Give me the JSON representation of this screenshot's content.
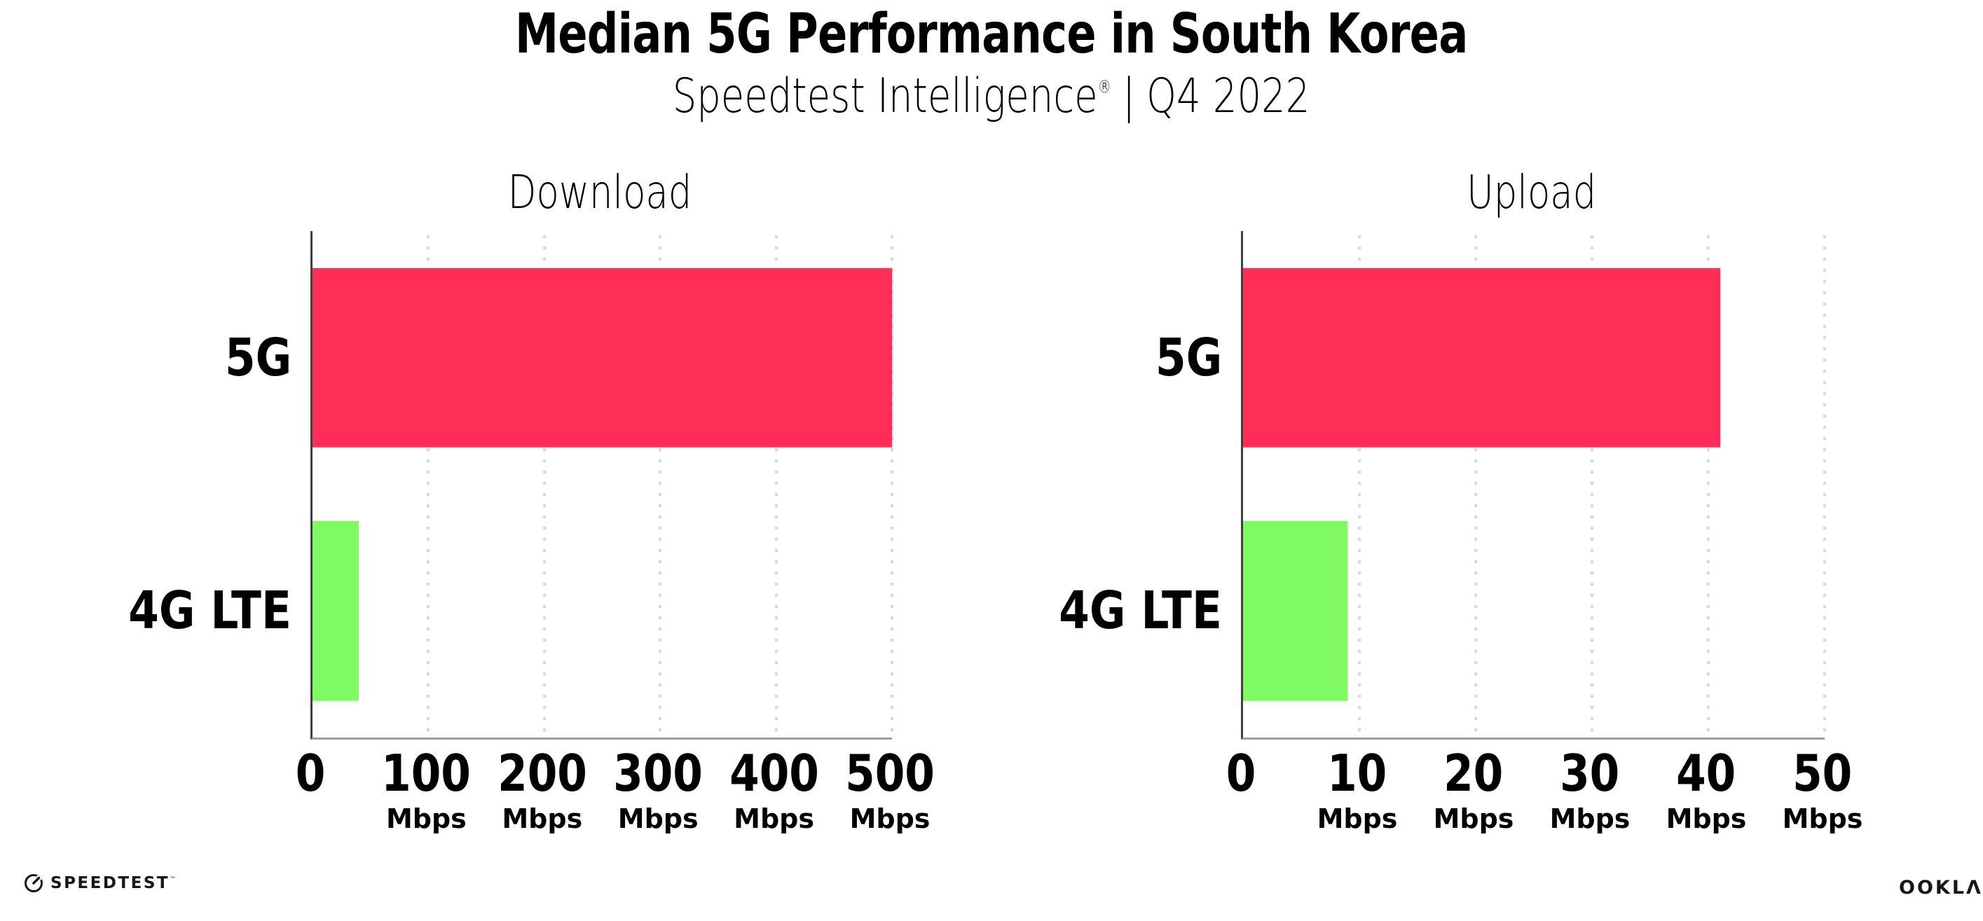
{
  "page": {
    "background": "#ffffff"
  },
  "header": {
    "title": "Median 5G Performance in South Korea",
    "subtitle_brand": "Speedtest Intelligence",
    "subtitle_registered": "®",
    "subtitle_separator": "|",
    "subtitle_period": "Q4 2022"
  },
  "chart_data": [
    {
      "type": "bar",
      "orientation": "horizontal",
      "title": "Download",
      "categories": [
        "5G",
        "4G LTE"
      ],
      "values": [
        500,
        40
      ],
      "unit": "Mbps",
      "xlim": [
        0,
        500
      ],
      "xticks": [
        0,
        100,
        200,
        300,
        400,
        500
      ],
      "bar_colors": [
        "#FF2E56",
        "#7FFA65"
      ],
      "grid": "vertical-dotted",
      "legend": false
    },
    {
      "type": "bar",
      "orientation": "horizontal",
      "title": "Upload",
      "categories": [
        "5G",
        "4G LTE"
      ],
      "values": [
        41,
        9
      ],
      "unit": "Mbps",
      "xlim": [
        0,
        50
      ],
      "xticks": [
        0,
        10,
        20,
        30,
        40,
        50
      ],
      "bar_colors": [
        "#FF2E56",
        "#7FFA65"
      ],
      "grid": "vertical-dotted",
      "legend": false
    }
  ],
  "colors": {
    "bar_pink": "#FF2E56",
    "bar_green": "#7FFA65",
    "grid_dot": "#D9D9E3",
    "axis_left": "#3F3F3F",
    "axis_bottom": "#9E9E9E",
    "text": "#000000"
  },
  "footer": {
    "speedtest_label": "SPEEDTEST",
    "speedtest_tm": "™",
    "ookla_label": "OOKLΛ",
    "ookla_registered": "®"
  }
}
